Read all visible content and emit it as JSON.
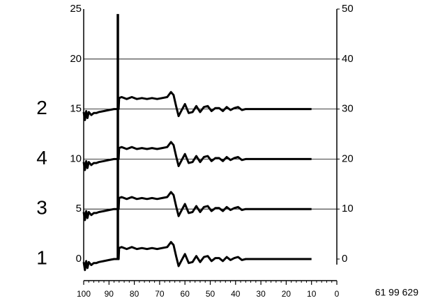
{
  "chart_data": {
    "type": "line",
    "x": [
      100,
      99.5,
      99,
      98.5,
      98,
      97,
      96,
      95,
      94,
      92,
      90,
      88,
      86.2,
      86,
      85,
      83,
      81,
      79,
      77,
      75,
      73,
      71,
      69,
      67,
      65.5,
      64.5,
      63.5,
      62.5,
      61.5,
      60,
      58.5,
      57,
      55.5,
      54,
      52.5,
      51,
      49.5,
      48,
      46.5,
      45,
      43.5,
      42,
      40.5,
      39,
      37.5,
      36,
      10
    ],
    "series": [
      {
        "name": "2",
        "color": "#000000",
        "values": [
          14.7,
          13.9,
          14.8,
          14.1,
          14.7,
          14.4,
          14.6,
          14.6,
          14.7,
          14.8,
          14.9,
          15,
          15,
          16.1,
          16.2,
          16,
          16.2,
          16,
          16.1,
          16,
          16.1,
          16,
          16.1,
          16.2,
          16.7,
          16.4,
          15.3,
          14.3,
          14.8,
          15.5,
          14.6,
          14.7,
          15.3,
          14.7,
          15.2,
          15.3,
          14.8,
          15.1,
          15.1,
          14.8,
          15.2,
          14.9,
          15.1,
          15.2,
          14.9,
          15,
          15
        ]
      },
      {
        "name": "4",
        "color": "#000000",
        "values": [
          9.7,
          8.9,
          9.8,
          9.1,
          9.7,
          9.4,
          9.6,
          9.6,
          9.7,
          9.8,
          9.9,
          10,
          10,
          11.1,
          11.2,
          11,
          11.2,
          11,
          11.1,
          11,
          11.1,
          11,
          11.1,
          11.2,
          11.7,
          11.4,
          10.3,
          9.3,
          9.8,
          10.5,
          9.6,
          9.7,
          10.3,
          9.7,
          10.2,
          10.3,
          9.8,
          10.1,
          10.1,
          9.8,
          10.2,
          9.9,
          10.1,
          10.2,
          9.9,
          10,
          10
        ]
      },
      {
        "name": "3",
        "color": "#000000",
        "values": [
          4.7,
          3.9,
          4.8,
          4.1,
          4.7,
          4.4,
          4.6,
          4.6,
          4.7,
          4.8,
          4.9,
          5,
          5,
          6.1,
          6.2,
          6,
          6.2,
          6,
          6.1,
          6,
          6.1,
          6,
          6.1,
          6.2,
          6.7,
          6.4,
          5.3,
          4.3,
          4.8,
          5.5,
          4.6,
          4.7,
          5.3,
          4.7,
          5.2,
          5.3,
          4.8,
          5.1,
          5.1,
          4.8,
          5.2,
          4.9,
          5.1,
          5.2,
          4.9,
          5,
          5
        ]
      },
      {
        "name": "1",
        "color": "#000000",
        "values": [
          -0.3,
          -1.1,
          -0.2,
          -0.9,
          -0.3,
          -0.6,
          -0.4,
          -0.4,
          -0.3,
          -0.2,
          -0.1,
          0,
          0,
          1.1,
          1.2,
          1,
          1.2,
          1,
          1.1,
          1,
          1.1,
          1,
          1.1,
          1.2,
          1.7,
          1.4,
          0.3,
          -0.7,
          -0.2,
          0.5,
          -0.4,
          -0.3,
          0.3,
          -0.3,
          0.2,
          0.3,
          -0.2,
          0.1,
          0.1,
          -0.2,
          0.2,
          -0.1,
          0.1,
          0.2,
          -0.1,
          0,
          0
        ]
      }
    ],
    "marker": {
      "x": [
        86.5,
        86.5
      ],
      "values": [
        0,
        24.5
      ]
    },
    "xlim": [
      100,
      0
    ],
    "xticks": [
      100,
      90,
      80,
      70,
      60,
      50,
      40,
      30,
      20,
      10,
      0
    ],
    "ylim": [
      0,
      25
    ],
    "yticks": [
      0,
      5,
      10,
      15,
      20,
      25
    ],
    "y2lim": [
      0,
      50
    ],
    "y2ticks": [
      0,
      10,
      20,
      30,
      40,
      50
    ],
    "grid": true,
    "figure_id": "61 99 629"
  }
}
